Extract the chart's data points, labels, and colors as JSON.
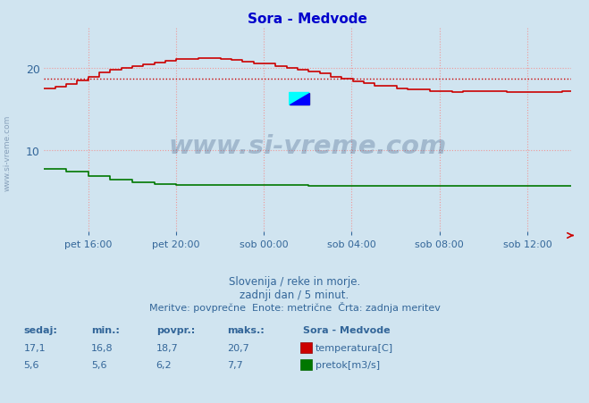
{
  "title": "Sora - Medvode",
  "title_color": "#0000cc",
  "bg_color": "#d0e4f0",
  "plot_bg_color": "#d0e4f0",
  "grid_color": "#ee9999",
  "grid_style": ":",
  "xlabel_ticks": [
    "pet 16:00",
    "pet 20:00",
    "sob 00:00",
    "sob 04:00",
    "sob 08:00",
    "sob 12:00"
  ],
  "ylim": [
    0,
    25
  ],
  "yticks": [
    10,
    20
  ],
  "ylabel_color": "#336699",
  "subtitle1": "Slovenija / reke in morje.",
  "subtitle2": "zadnji dan / 5 minut.",
  "subtitle3": "Meritve: povprečne  Enote: metrične  Črta: zadnja meritev",
  "subtitle_color": "#336699",
  "watermark_text": "www.si-vreme.com",
  "watermark_color": "#1a3a6a",
  "watermark_alpha": 0.25,
  "avg_line_color": "#cc0000",
  "avg_line_style": ":",
  "avg_line_value": 18.7,
  "temp_color": "#cc0000",
  "flow_color": "#007700",
  "legend_title": "Sora - Medvode",
  "legend_items": [
    {
      "label": "temperatura[C]",
      "color": "#cc0000"
    },
    {
      "label": "pretok[m3/s]",
      "color": "#007700"
    }
  ],
  "stats": {
    "temp": {
      "sedaj": 17.1,
      "min": 16.8,
      "povpr": 18.7,
      "maks": 20.7
    },
    "flow": {
      "sedaj": 5.6,
      "min": 5.6,
      "povpr": 6.2,
      "maks": 7.7
    }
  },
  "n_points": 288,
  "temp_data": [
    17.5,
    17.7,
    18.0,
    18.5,
    19.0,
    19.5,
    19.8,
    20.0,
    20.3,
    20.5,
    20.7,
    21.0,
    21.2,
    21.3,
    21.3,
    21.2,
    21.1,
    20.9,
    20.8,
    20.6,
    20.4,
    20.2,
    20.0,
    19.8,
    19.5,
    19.2,
    18.9,
    18.6,
    18.3,
    18.0,
    17.8,
    17.6,
    17.5,
    17.4,
    17.3,
    17.2,
    17.2,
    17.2,
    17.2,
    17.2,
    17.2,
    17.1,
    17.1,
    17.1,
    17.1,
    17.1,
    17.1,
    17.1
  ],
  "flow_data": [
    7.7,
    7.5,
    7.3,
    7.0,
    6.8,
    6.5,
    6.3,
    6.1,
    6.0,
    5.9,
    5.8,
    5.8,
    5.7,
    5.7,
    5.7,
    5.7,
    5.7,
    5.7,
    5.7,
    5.7,
    5.7,
    5.7,
    5.7,
    5.6,
    5.6,
    5.6,
    5.6,
    5.6,
    5.6,
    5.6,
    5.6,
    5.6,
    5.6,
    5.6,
    5.6,
    5.6,
    5.6,
    5.6,
    5.6,
    5.6,
    5.6,
    5.6,
    5.6,
    5.6,
    5.6,
    5.6,
    5.6,
    5.6
  ]
}
